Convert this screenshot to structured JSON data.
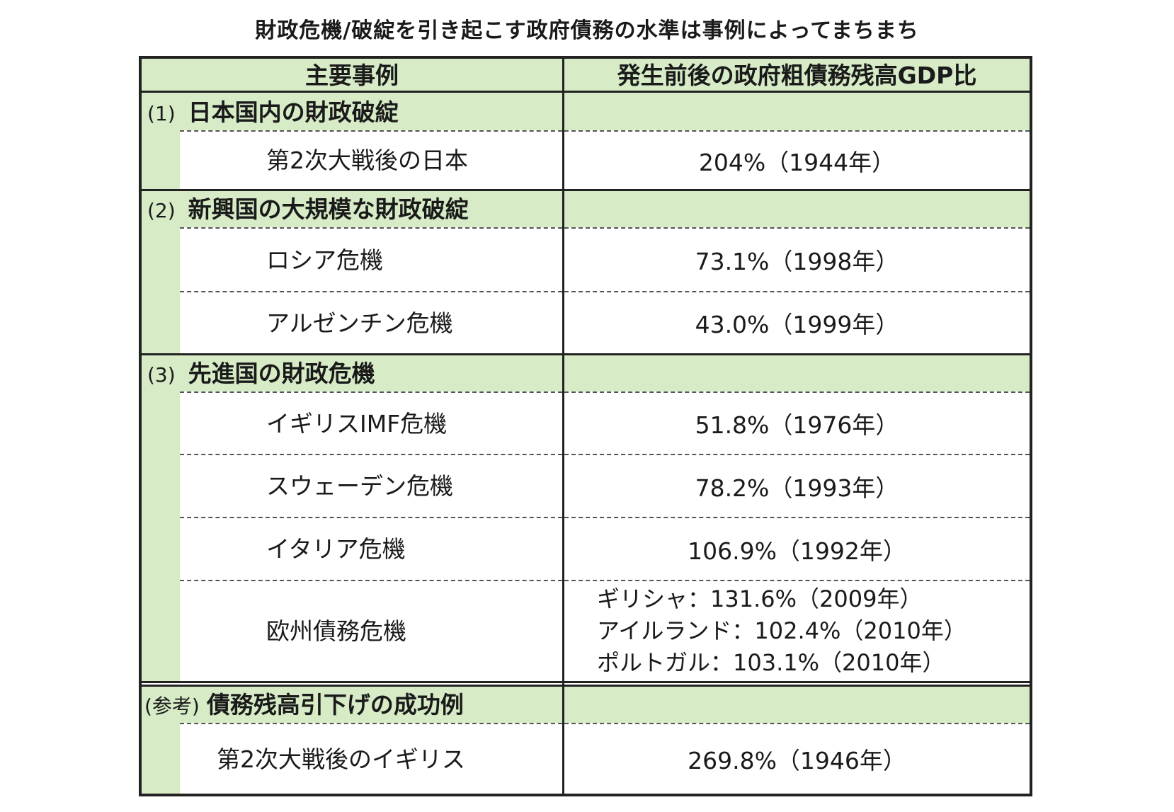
{
  "title": "財政危機/破綻を引き起こす政府債務の水準は事例によってまちまち",
  "header": {
    "col1": "主要事例",
    "col2": "発生前後の政府粗債務残高GDP比"
  },
  "sections": [
    {
      "num": "(1)",
      "label": "日本国内の財政破綻",
      "items": [
        {
          "name": "第2次大戦後の日本",
          "value": "204%（1944年）"
        }
      ]
    },
    {
      "num": "(2)",
      "label": "新興国の大規模な財政破綻",
      "items": [
        {
          "name": "ロシア危機",
          "value": "73.1%（1998年）"
        },
        {
          "name": "アルゼンチン危機",
          "value": "43.0%（1999年）"
        }
      ]
    },
    {
      "num": "(3)",
      "label": "先進国の財政危機",
      "items": [
        {
          "name": "イギリスIMF危機",
          "value": "51.8%（1976年）"
        },
        {
          "name": "スウェーデン危機",
          "value": "78.2%（1993年）"
        },
        {
          "name": "イタリア危機",
          "value": "106.9%（1992年）"
        },
        {
          "name": "欧州債務危機",
          "values": [
            "ギリシャ：131.6%（2009年）",
            "アイルランド：102.4%（2010年）",
            "ポルトガル：103.1%（2010年）"
          ]
        }
      ]
    },
    {
      "num": "(参考)",
      "label": "債務残高引下げの成功例",
      "items": [
        {
          "name": "第2次大戦後のイギリス",
          "value": "269.8%（1946年）"
        }
      ]
    }
  ]
}
